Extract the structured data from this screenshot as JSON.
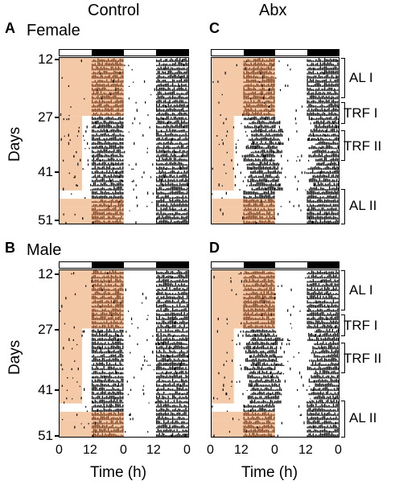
{
  "columns": {
    "control": "Control",
    "abx": "Abx"
  },
  "rows": {
    "female": "Female",
    "male": "Male"
  },
  "panels": {
    "a": "A",
    "b": "B",
    "c": "C",
    "d": "D"
  },
  "y_axis": {
    "label": "Days",
    "ticks": [
      "12",
      "27",
      "41",
      "51"
    ]
  },
  "x_axis": {
    "label": "Time (h)",
    "ticks": [
      "0",
      "12",
      "0",
      "12",
      "0"
    ]
  },
  "phases": [
    "AL I",
    "TRF I",
    "TRF II",
    "AL II"
  ],
  "colors": {
    "food_shading": "#f4c9a8",
    "activity": "#000000",
    "activity_fed": "#7a3e1c"
  }
}
